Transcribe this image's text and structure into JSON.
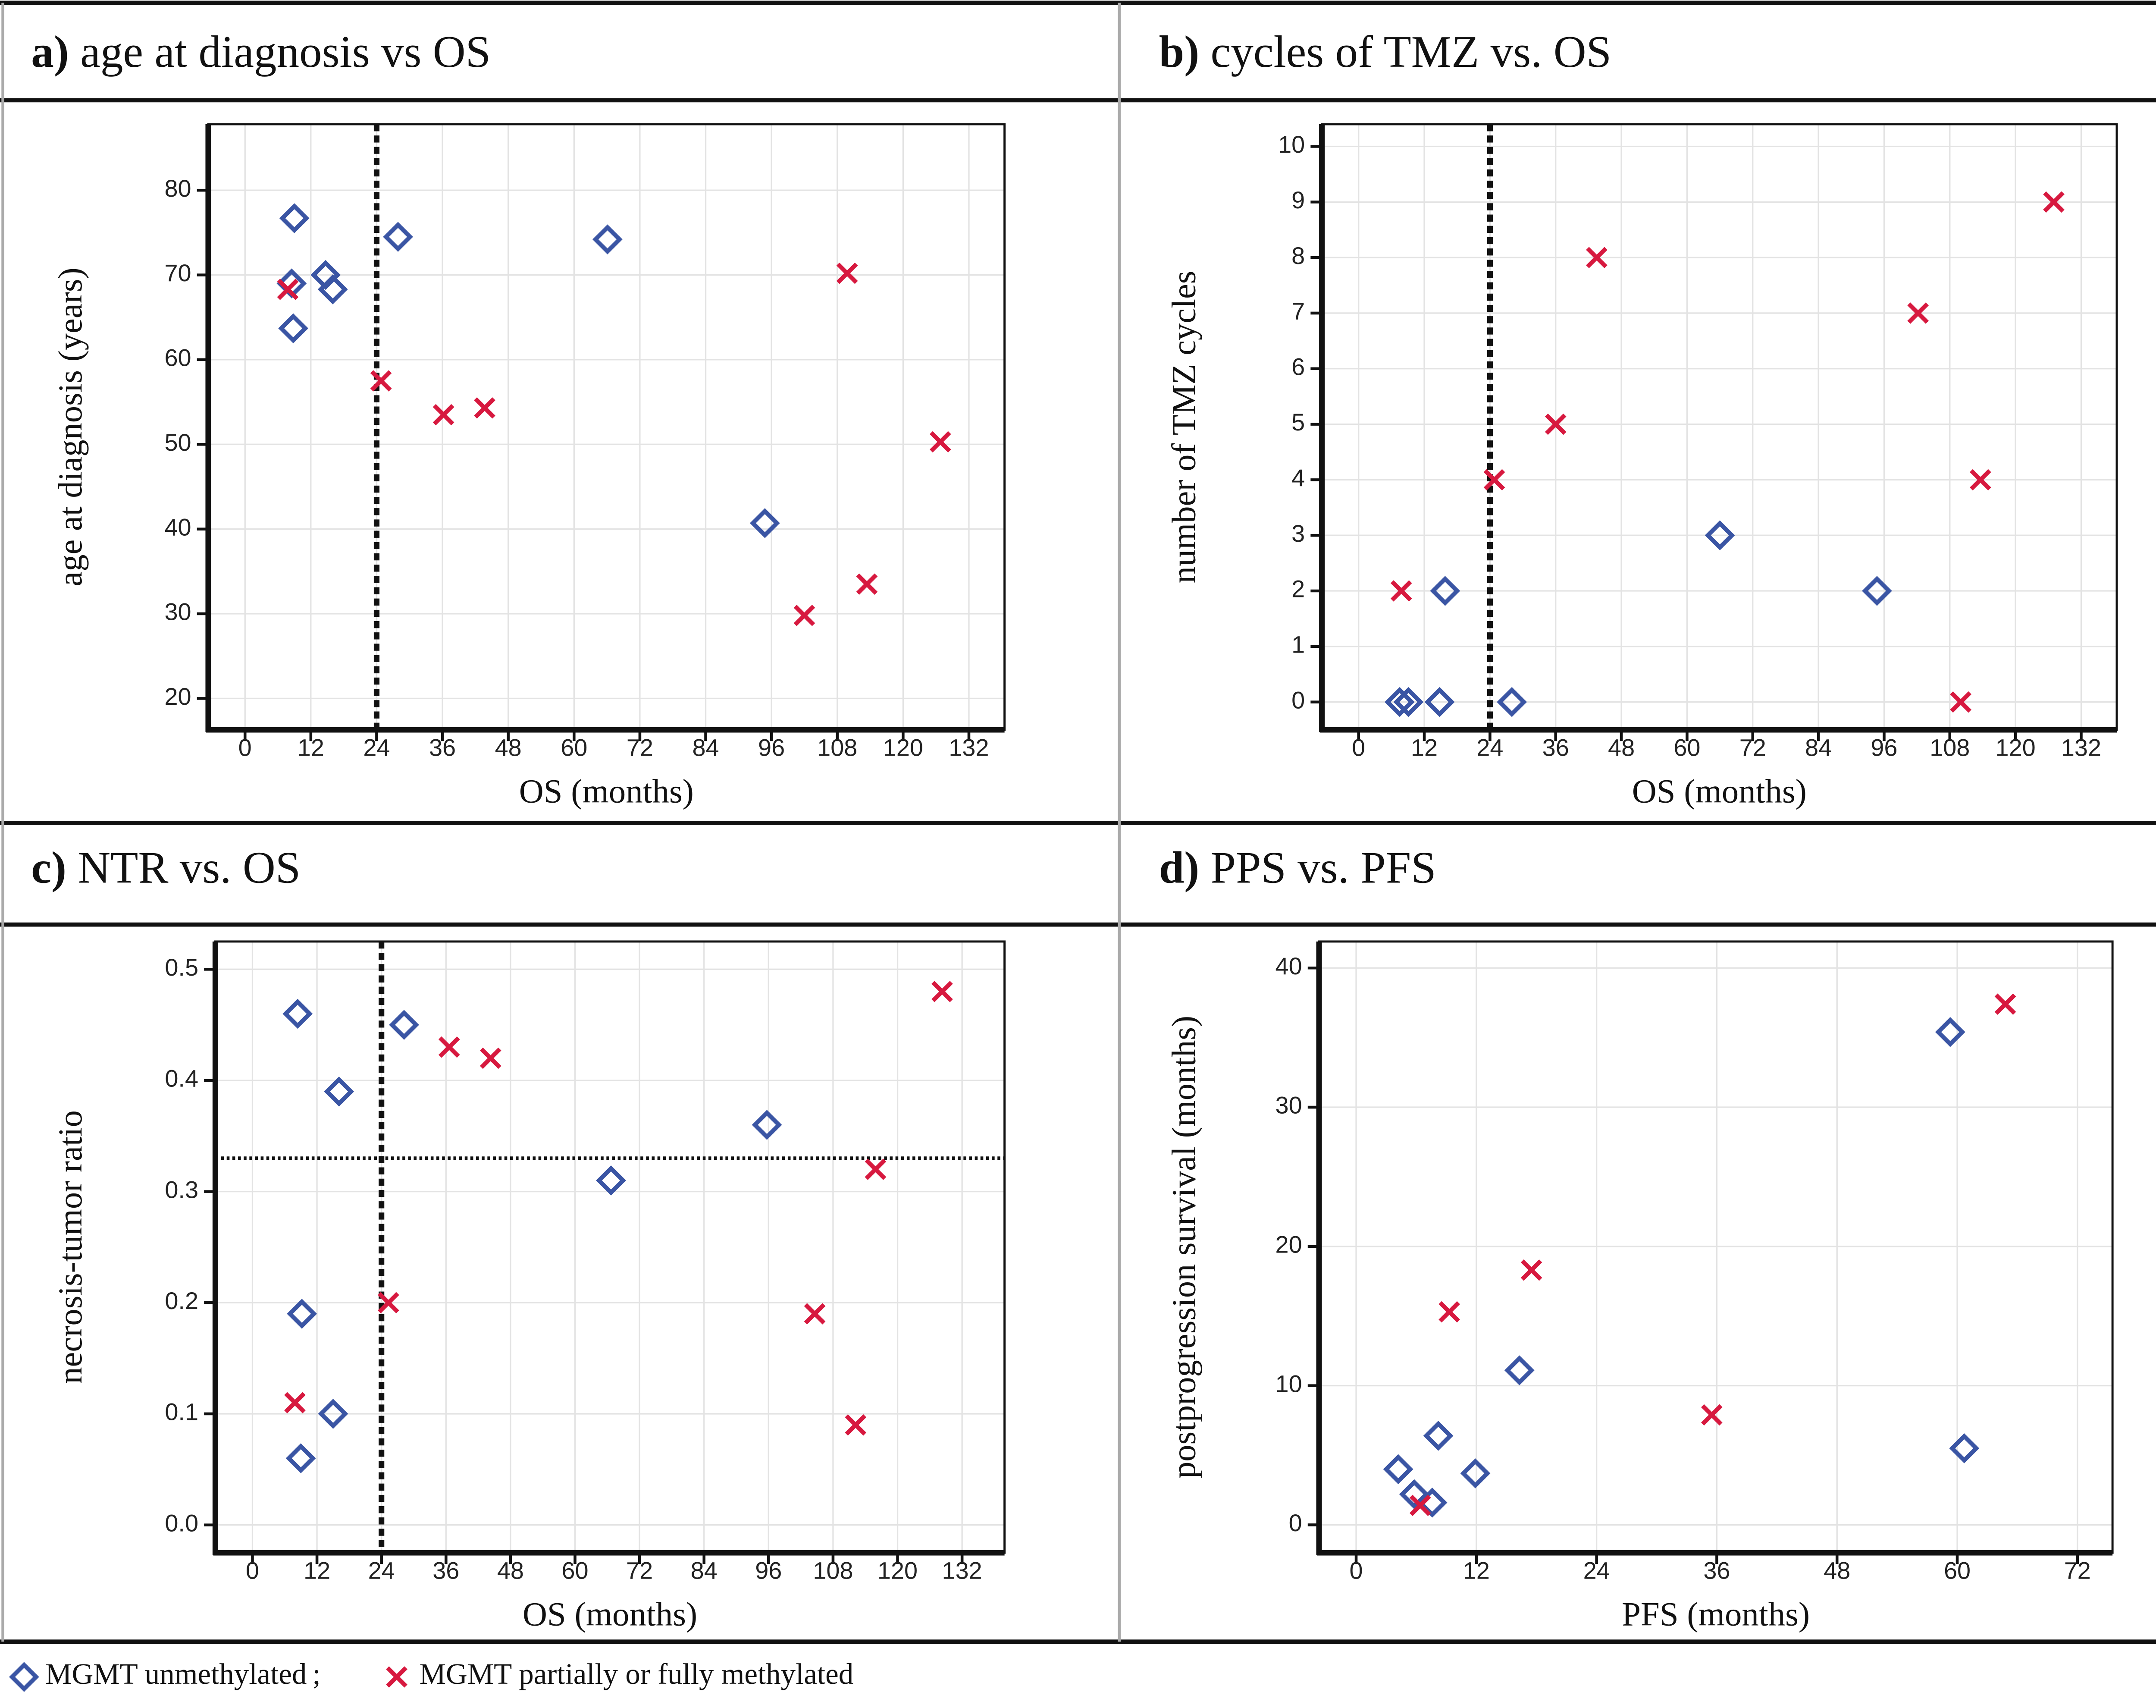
{
  "chart_data": [
    {
      "type": "scatter",
      "panel_label": "a)",
      "title": "age at diagnosis vs OS",
      "x_label": "OS (months)",
      "y_label": "age at diagnosis (years)",
      "xlim": [
        -6.7,
        138.5
      ],
      "ylim": [
        16.3,
        87.8
      ],
      "xticks": [
        0,
        12,
        24,
        36,
        48,
        60,
        72,
        84,
        96,
        108,
        120,
        132
      ],
      "yticks": [
        20,
        30,
        40,
        50,
        60,
        70,
        80
      ],
      "grid": true,
      "vlines": [
        24
      ],
      "series": [
        {
          "marker": "diamond",
          "color": "#3a55a4",
          "x": [
            9.0,
            8.5,
            8.8,
            14.7,
            16.0,
            27.9,
            66.1,
            94.8
          ],
          "values": [
            76.7,
            69.0,
            63.7,
            70.0,
            68.3,
            74.5,
            74.2,
            40.7
          ]
        },
        {
          "marker": "x",
          "color": "#d7193f",
          "x": [
            7.8,
            24.8,
            36.2,
            43.7,
            109.8,
            102.0,
            113.4,
            126.8
          ],
          "values": [
            68.3,
            57.5,
            53.5,
            54.3,
            70.2,
            29.8,
            33.5,
            50.3
          ]
        }
      ]
    },
    {
      "type": "scatter",
      "panel_label": "b)",
      "title": "cycles of TMZ vs. OS",
      "x_label": "OS (months)",
      "y_label": "number of TMZ cycles",
      "xlim": [
        -6.7,
        138.5
      ],
      "ylim": [
        -0.5,
        10.4
      ],
      "xticks": [
        0,
        12,
        24,
        36,
        48,
        60,
        72,
        84,
        96,
        108,
        120,
        132
      ],
      "yticks": [
        0,
        1,
        2,
        3,
        4,
        5,
        6,
        7,
        8,
        9,
        10
      ],
      "grid": true,
      "vlines": [
        24
      ],
      "series": [
        {
          "marker": "diamond",
          "color": "#3a55a4",
          "x": [
            7.5,
            9.1,
            14.8,
            28.0,
            15.8,
            66.0,
            94.7
          ],
          "values": [
            0,
            0,
            0,
            0,
            2,
            3,
            2
          ]
        },
        {
          "marker": "x",
          "color": "#d7193f",
          "x": [
            7.8,
            24.8,
            36.0,
            43.5,
            102.2,
            110.0,
            113.6,
            127.0
          ],
          "values": [
            2,
            4,
            5,
            8,
            7,
            0,
            4,
            9
          ]
        }
      ]
    },
    {
      "type": "scatter",
      "panel_label": "c)",
      "title": "NTR vs. OS",
      "x_label": "OS (months)",
      "y_label": "necrosis-tumor ratio",
      "xlim": [
        -6.9,
        139.9
      ],
      "ylim": [
        -0.025,
        0.525
      ],
      "xticks": [
        0,
        12,
        24,
        36,
        48,
        60,
        72,
        84,
        96,
        108,
        120,
        132
      ],
      "yticks": [
        {
          "value": 0,
          "label": "0.0"
        },
        0.1,
        0.2,
        0.3,
        0.4,
        0.5
      ],
      "grid": true,
      "vlines": [
        24
      ],
      "hlines": [
        0.33
      ],
      "series": [
        {
          "marker": "diamond",
          "color": "#3a55a4",
          "x": [
            8.4,
            16.1,
            28.2,
            9.2,
            15.0,
            9.0,
            66.7,
            95.7
          ],
          "values": [
            0.46,
            0.39,
            0.45,
            0.19,
            0.1,
            0.06,
            0.31,
            0.36
          ]
        },
        {
          "marker": "x",
          "color": "#d7193f",
          "x": [
            7.9,
            25.3,
            36.6,
            44.3,
            104.6,
            112.2,
            115.9,
            128.3
          ],
          "values": [
            0.11,
            0.2,
            0.43,
            0.42,
            0.19,
            0.09,
            0.32,
            0.48
          ]
        }
      ]
    },
    {
      "type": "scatter",
      "panel_label": "d)",
      "title": "PPS vs. PFS",
      "x_label": "PFS (months)",
      "y_label": "postprogression survival  (months)",
      "xlim": [
        -3.7,
        75.5
      ],
      "ylim": [
        -2,
        41.9
      ],
      "xticks": [
        0,
        12,
        24,
        36,
        48,
        60,
        72
      ],
      "yticks": [
        0,
        10,
        20,
        30,
        40
      ],
      "grid": true,
      "series": [
        {
          "marker": "diamond",
          "color": "#3a55a4",
          "x": [
            4.2,
            5.8,
            7.6,
            8.2,
            11.9,
            16.3,
            59.3,
            60.7
          ],
          "values": [
            4.0,
            2.2,
            1.6,
            6.4,
            3.7,
            11.1,
            35.4,
            5.5
          ]
        },
        {
          "marker": "x",
          "color": "#d7193f",
          "x": [
            6.4,
            9.3,
            17.5,
            35.5,
            64.8
          ],
          "values": [
            1.4,
            15.3,
            18.3,
            7.9,
            37.4
          ]
        }
      ]
    }
  ],
  "legend": [
    {
      "label": "MGMT unmethylated",
      "marker": "diamond",
      "color": "#3a55a4"
    },
    {
      "label": "MGMT partially or fully methylated",
      "marker": "x",
      "color": "#d7193f"
    }
  ],
  "legend_separator": ";"
}
